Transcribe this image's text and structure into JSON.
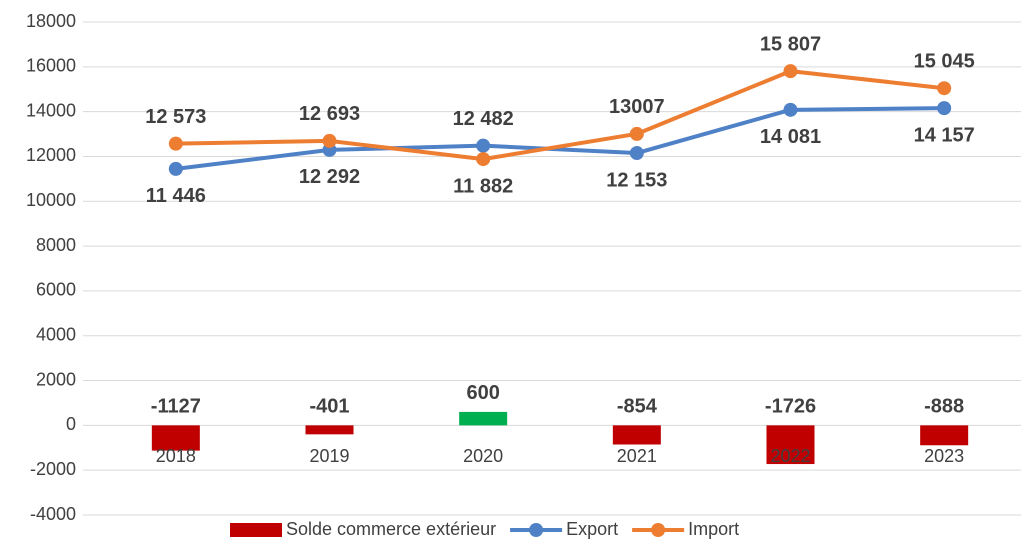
{
  "chart_data": {
    "type": "combo",
    "categories": [
      "2018",
      "2019",
      "2020",
      "2021",
      "2022",
      "2023"
    ],
    "series": [
      {
        "name": "Solde commerce extérieur",
        "type": "bar",
        "color": "#c00000",
        "colors": [
          "#c00000",
          "#c00000",
          "#00b050",
          "#c00000",
          "#c00000",
          "#c00000"
        ],
        "values": [
          -1127,
          -401,
          600,
          -854,
          -1726,
          -888
        ]
      },
      {
        "name": "Export",
        "type": "line",
        "color": "#4f81c7",
        "values": [
          11446,
          12292,
          12482,
          12153,
          14081,
          14157
        ],
        "value_labels": [
          "11 446",
          "12 292",
          "12 482",
          "12 153",
          "14 081",
          "14 157"
        ]
      },
      {
        "name": "Import",
        "type": "line",
        "color": "#ed7d31",
        "values": [
          12573,
          12693,
          11882,
          13007,
          15807,
          15045
        ],
        "value_labels": [
          "12 573",
          "12 693",
          "11 882",
          "13007",
          "15 807",
          "15 045"
        ]
      }
    ],
    "ylim": [
      -4000,
      18000
    ],
    "yticks": [
      -4000,
      -2000,
      0,
      2000,
      4000,
      6000,
      8000,
      10000,
      12000,
      14000,
      16000,
      18000
    ],
    "grid": true,
    "legend": "bottom"
  }
}
